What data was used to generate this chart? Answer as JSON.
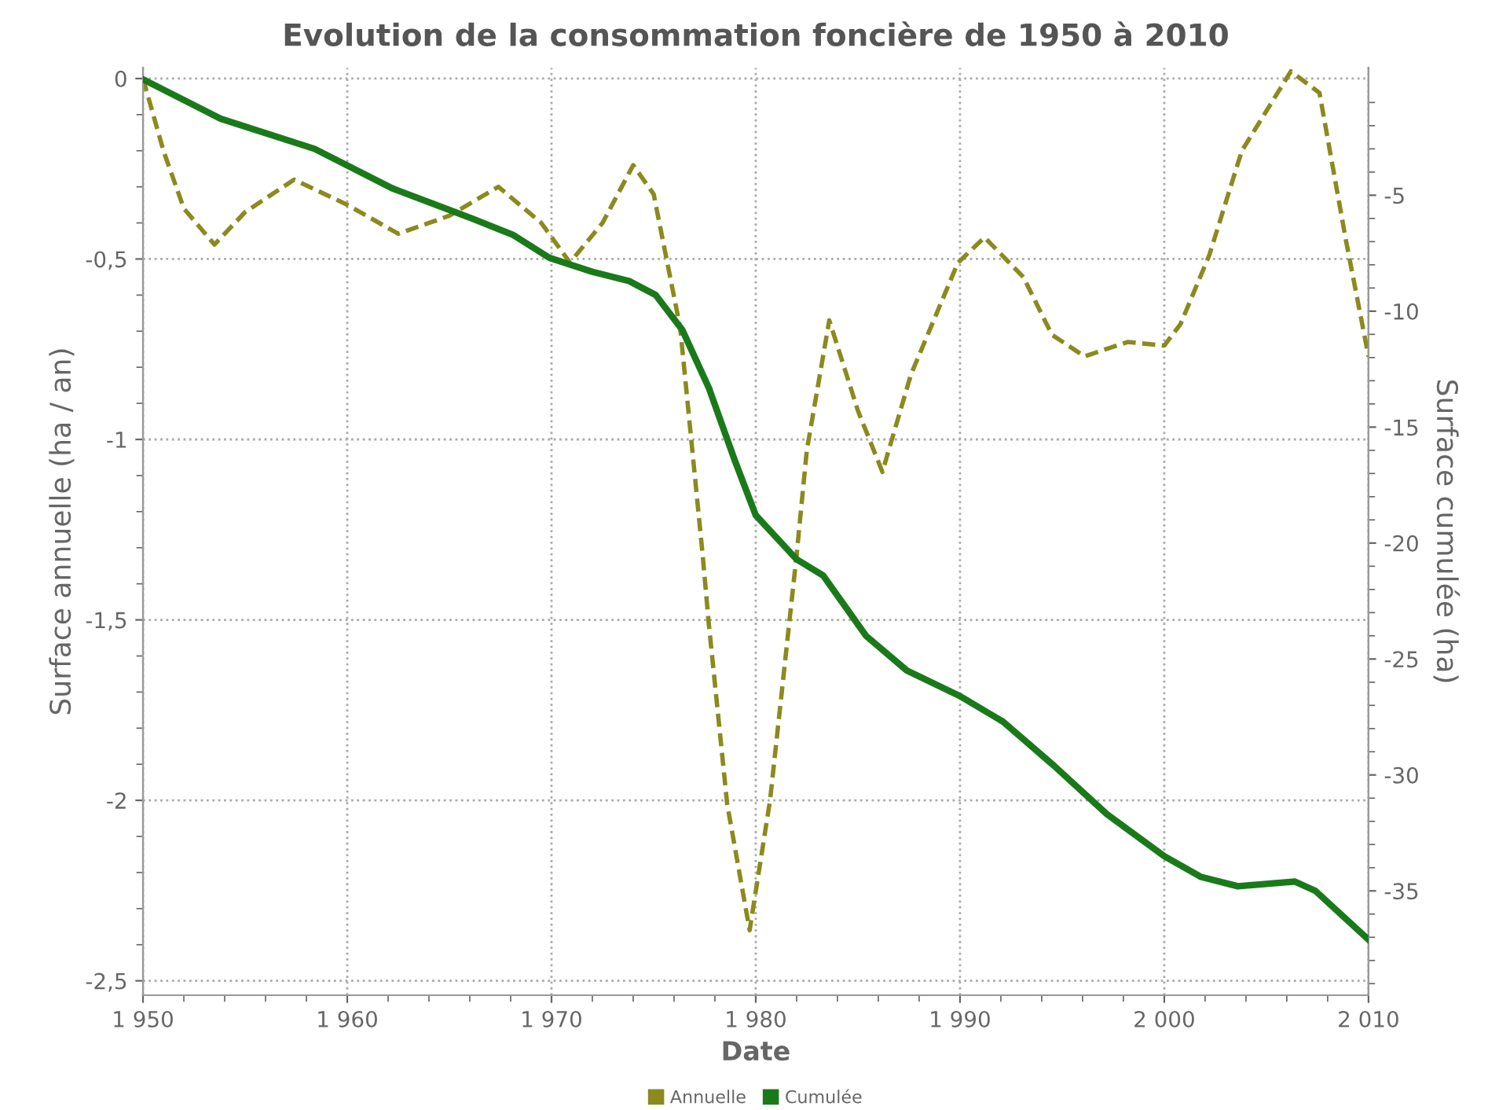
{
  "chart_data": {
    "type": "line",
    "title": "Evolution de la consommation foncière de 1950 à 2010",
    "xlabel": "Date",
    "ylabel": "Surface annuelle (ha / an)",
    "y2label": "Surface cumulée (ha)",
    "xlim": [
      1950,
      2010
    ],
    "xticks": [
      {
        "value": 1950,
        "label": "1 950"
      },
      {
        "value": 1952,
        "label": null
      },
      {
        "value": 1954,
        "label": null
      },
      {
        "value": 1956,
        "label": null
      },
      {
        "value": 1958,
        "label": null
      },
      {
        "value": 1960,
        "label": "1 960"
      },
      {
        "value": 1962,
        "label": null
      },
      {
        "value": 1964,
        "label": null
      },
      {
        "value": 1966,
        "label": null
      },
      {
        "value": 1968,
        "label": null
      },
      {
        "value": 1970,
        "label": "1 970"
      },
      {
        "value": 1972,
        "label": null
      },
      {
        "value": 1974,
        "label": null
      },
      {
        "value": 1976,
        "label": null
      },
      {
        "value": 1978,
        "label": null
      },
      {
        "value": 1980,
        "label": "1 980"
      },
      {
        "value": 1982,
        "label": null
      },
      {
        "value": 1984,
        "label": null
      },
      {
        "value": 1986,
        "label": null
      },
      {
        "value": 1988,
        "label": null
      },
      {
        "value": 1990,
        "label": "1 990"
      },
      {
        "value": 1992,
        "label": null
      },
      {
        "value": 1994,
        "label": null
      },
      {
        "value": 1996,
        "label": null
      },
      {
        "value": 1998,
        "label": null
      },
      {
        "value": 2000,
        "label": "2 000"
      },
      {
        "value": 2002,
        "label": null
      },
      {
        "value": 2004,
        "label": null
      },
      {
        "value": 2006,
        "label": null
      },
      {
        "value": 2008,
        "label": null
      },
      {
        "value": 2010,
        "label": "2 010"
      }
    ],
    "ylim": [
      -2.54,
      0.03
    ],
    "yticks": [
      0,
      {
        "value": -0.1,
        "label": null
      },
      {
        "value": -0.2,
        "label": null
      },
      {
        "value": -0.3,
        "label": null
      },
      {
        "value": -0.4,
        "label": null
      },
      {
        "value": -0.5,
        "label": "-0,5"
      },
      {
        "value": -0.6,
        "label": null
      },
      {
        "value": -0.7,
        "label": null
      },
      {
        "value": -0.8,
        "label": null
      },
      {
        "value": -0.9,
        "label": null
      },
      -1,
      {
        "value": -1.1,
        "label": null
      },
      {
        "value": -1.2,
        "label": null
      },
      {
        "value": -1.3,
        "label": null
      },
      {
        "value": -1.4,
        "label": null
      },
      {
        "value": -1.5,
        "label": "-1,5"
      },
      {
        "value": -1.6,
        "label": null
      },
      {
        "value": -1.7,
        "label": null
      },
      {
        "value": -1.8,
        "label": null
      },
      {
        "value": -1.9,
        "label": null
      },
      -2,
      {
        "value": -2.1,
        "label": null
      },
      {
        "value": -2.2,
        "label": null
      },
      {
        "value": -2.3,
        "label": null
      },
      {
        "value": -2.4,
        "label": null
      },
      {
        "value": -2.5,
        "label": "-2,5"
      }
    ],
    "y2lim": [
      -39.5,
      0.5
    ],
    "y2ticks": [
      {
        "value": -1,
        "label": null
      },
      {
        "value": -2,
        "label": null
      },
      {
        "value": -3,
        "label": null
      },
      {
        "value": -4,
        "label": null
      },
      -5,
      {
        "value": -6,
        "label": null
      },
      {
        "value": -7,
        "label": null
      },
      {
        "value": -8,
        "label": null
      },
      {
        "value": -9,
        "label": null
      },
      -10,
      {
        "value": -11,
        "label": null
      },
      {
        "value": -12,
        "label": null
      },
      {
        "value": -13,
        "label": null
      },
      {
        "value": -14,
        "label": null
      },
      -15,
      {
        "value": -16,
        "label": null
      },
      {
        "value": -17,
        "label": null
      },
      {
        "value": -18,
        "label": null
      },
      {
        "value": -19,
        "label": null
      },
      -20,
      {
        "value": -21,
        "label": null
      },
      {
        "value": -22,
        "label": null
      },
      {
        "value": -23,
        "label": null
      },
      {
        "value": -24,
        "label": null
      },
      -25,
      {
        "value": -26,
        "label": null
      },
      {
        "value": -27,
        "label": null
      },
      {
        "value": -28,
        "label": null
      },
      {
        "value": -29,
        "label": null
      },
      -30,
      {
        "value": -31,
        "label": null
      },
      {
        "value": -32,
        "label": null
      },
      {
        "value": -33,
        "label": null
      },
      {
        "value": -34,
        "label": null
      },
      -35,
      {
        "value": -36,
        "label": null
      },
      {
        "value": -37,
        "label": null
      },
      {
        "value": -38,
        "label": null
      },
      {
        "value": -39,
        "label": null
      }
    ],
    "grid": true,
    "legend": "bottom",
    "marker": "none",
    "series": [
      {
        "name": "Annuelle",
        "color": "#8a8a1e",
        "line_style": "dashed",
        "x": [
          1950,
          1951,
          1952,
          1953.5,
          1955,
          1957.4,
          1960,
          1962.5,
          1965,
          1967.4,
          1969.5,
          1970.9,
          1972.5,
          1974,
          1975,
          1976.3,
          1977.4,
          1977.7,
          1978.6,
          1979.7,
          1980.7,
          1982,
          1982.5,
          1983.6,
          1985,
          1986.2,
          1987.6,
          1989.9,
          1991.2,
          1993.1,
          1994.5,
          1996.1,
          1998.2,
          2000,
          2000.8,
          2002.2,
          2003.8,
          2006.2,
          2007.6,
          2008.9,
          2010
        ],
        "values": [
          0,
          -0.2,
          -0.36,
          -0.46,
          -0.37,
          -0.28,
          -0.35,
          -0.43,
          -0.38,
          -0.3,
          -0.4,
          -0.51,
          -0.4,
          -0.24,
          -0.32,
          -0.69,
          -1.32,
          -1.51,
          -2.01,
          -2.36,
          -2.0,
          -1.32,
          -1.03,
          -0.67,
          -0.92,
          -1.09,
          -0.82,
          -0.51,
          -0.44,
          -0.55,
          -0.71,
          -0.77,
          -0.73,
          -0.74,
          -0.68,
          -0.49,
          -0.2,
          0.02,
          -0.04,
          -0.45,
          -0.77
        ]
      },
      {
        "name": "Cumulée",
        "color": "#1a7a1a",
        "axis": "y2",
        "line_style": "solid",
        "x": [
          1950,
          1953.8,
          1958.4,
          1962.2,
          1966.1,
          1968.1,
          1969.9,
          1972,
          1973.8,
          1975.1,
          1976.4,
          1977.7,
          1979,
          1980,
          1982,
          1983.3,
          1985.4,
          1987.4,
          1990,
          1992.1,
          1994.6,
          1997.2,
          2000,
          2001.8,
          2003.6,
          2006.4,
          2007.4,
          2010
        ],
        "values": [
          0,
          -1.7,
          -3.0,
          -4.7,
          -6.0,
          -6.7,
          -7.7,
          -8.3,
          -8.7,
          -9.3,
          -10.8,
          -13.3,
          -16.5,
          -18.8,
          -20.7,
          -21.4,
          -24.0,
          -25.5,
          -26.6,
          -27.7,
          -29.6,
          -31.7,
          -33.5,
          -34.4,
          -34.8,
          -34.6,
          -35.0,
          -37.1
        ]
      }
    ]
  }
}
